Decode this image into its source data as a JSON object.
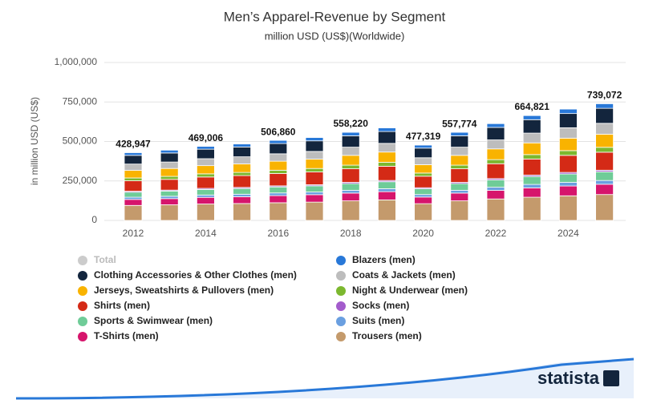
{
  "chart_data": {
    "type": "bar",
    "stacked": true,
    "title": "Men’s Apparel-Revenue by Segment",
    "subtitle": "million USD (US$)(Worldwide)",
    "y_label": "in million USD (US$)",
    "categories": [
      "2012",
      null,
      "2014",
      null,
      "2016",
      null,
      "2018",
      null,
      "2020",
      null,
      "2022",
      null,
      "2024",
      null
    ],
    "ylim": [
      0,
      1000000
    ],
    "yticks": [
      0,
      {
        "value": 250000,
        "label": "250,000"
      },
      {
        "value": 500000,
        "label": "500,000"
      },
      {
        "value": 750000,
        "label": "750,000"
      },
      {
        "value": 1000000,
        "label": "1,000,000"
      }
    ],
    "grid": true,
    "series": [
      {
        "name": "Total",
        "color": "#cccccc",
        "values": [
          428947,
          null,
          469006,
          null,
          506860,
          null,
          558220,
          null,
          477319,
          557774,
          null,
          664821,
          null,
          739072
        ],
        "value_labels": [
          "428,947",
          null,
          "469,006",
          null,
          "506,860",
          null,
          "558,220",
          null,
          "477,319",
          "557,774",
          null,
          "664,821",
          null,
          "739,072"
        ]
      },
      {
        "name": "Blazers (men)",
        "color": "#2878d8",
        "values": [
          17000,
          18000,
          18000,
          19000,
          20000,
          21000,
          22000,
          23000,
          19000,
          22000,
          24000,
          26000,
          28000,
          29000
        ]
      },
      {
        "name": "Clothing Accessories & Other Clothes (men)",
        "color": "#13253d",
        "values": [
          55000,
          57000,
          60000,
          62000,
          65000,
          67000,
          72000,
          75000,
          61000,
          72000,
          79000,
          85000,
          90000,
          95000
        ]
      },
      {
        "name": "Coats & Jackets (men)",
        "color": "#bdbdbd",
        "values": [
          40000,
          41000,
          44000,
          45000,
          47000,
          49000,
          52000,
          55000,
          44000,
          52000,
          57000,
          62000,
          66000,
          69000
        ]
      },
      {
        "name": "Jerseys, Sweatshirts & Pullovers (men)",
        "color": "#f9b300",
        "values": [
          48000,
          50000,
          52000,
          54000,
          57000,
          59000,
          62000,
          65000,
          53000,
          62000,
          68000,
          74000,
          79000,
          83000
        ]
      },
      {
        "name": "Night & Underwear (men)",
        "color": "#7cb82f",
        "values": [
          18000,
          19000,
          20000,
          20000,
          21000,
          22000,
          23000,
          25000,
          20000,
          23000,
          26000,
          28000,
          30000,
          31000
        ]
      },
      {
        "name": "Shirts (men)",
        "color": "#d42a16",
        "values": [
          66000,
          68000,
          72000,
          75000,
          78000,
          81000,
          86000,
          90000,
          73000,
          86000,
          94000,
          102000,
          108000,
          114000
        ]
      },
      {
        "name": "Socks (men)",
        "color": "#a35ccc",
        "values": [
          6000,
          6000,
          7000,
          7000,
          7000,
          7000,
          8000,
          8000,
          7000,
          8000,
          9000,
          9000,
          10000,
          10000
        ]
      },
      {
        "name": "Sports & Swimwear (men)",
        "color": "#6fcc98",
        "values": [
          32000,
          33000,
          35000,
          36000,
          38000,
          39000,
          42000,
          44000,
          36000,
          42000,
          46000,
          50000,
          53000,
          55000
        ]
      },
      {
        "name": "Suits (men)",
        "color": "#6a9fe0",
        "values": [
          14000,
          15000,
          15000,
          16000,
          17000,
          17000,
          18000,
          19000,
          16000,
          18000,
          20000,
          22000,
          23000,
          24000
        ]
      },
      {
        "name": "T-Shirts (men)",
        "color": "#d6156c",
        "values": [
          38000,
          39000,
          42000,
          43000,
          45000,
          47000,
          49000,
          52000,
          42000,
          49000,
          54000,
          59000,
          62000,
          65000
        ]
      },
      {
        "name": "Trousers (men)",
        "color": "#c49a6c",
        "values": [
          95000,
          99000,
          104000,
          107000,
          112000,
          116000,
          124000,
          130000,
          106000,
          124000,
          136000,
          147000,
          156000,
          164000
        ]
      }
    ]
  },
  "footer": {
    "brand": "statista"
  }
}
